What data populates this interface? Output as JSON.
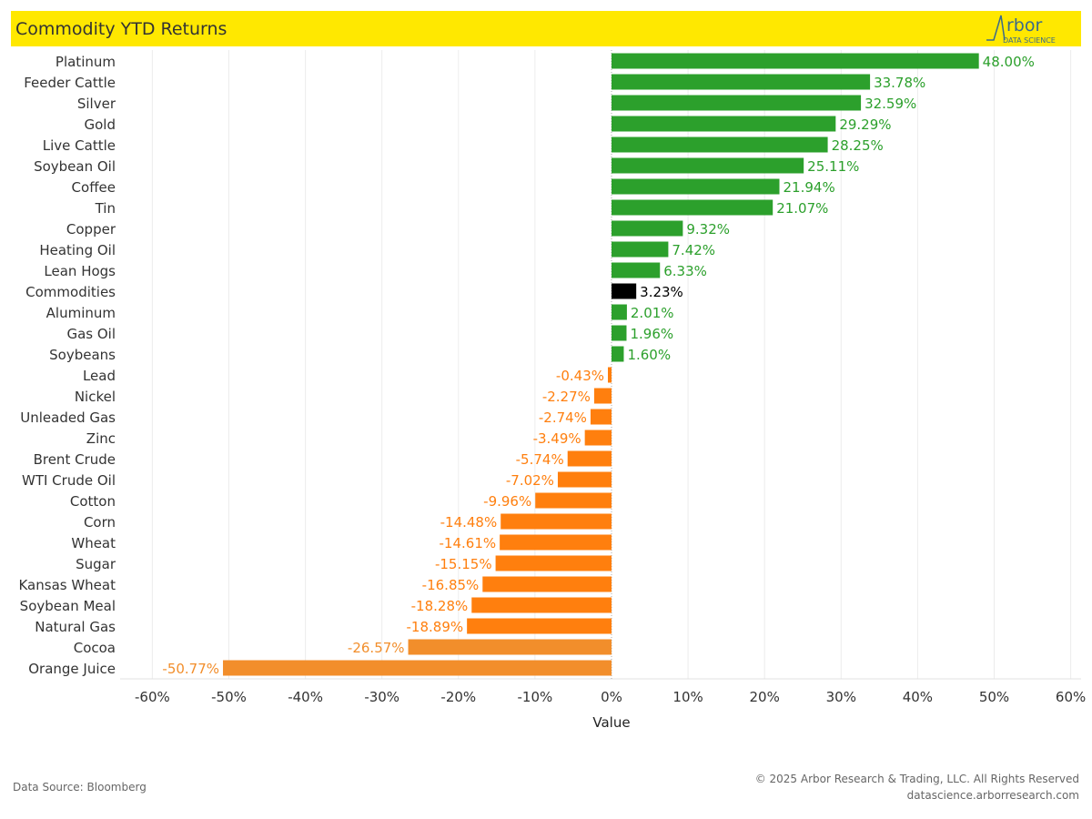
{
  "header": {
    "title": "Commodity YTD Returns",
    "logo_text": "Arbor",
    "logo_subtext": "DATA SCIENCE"
  },
  "footer": {
    "source": "Data Source: Bloomberg",
    "copyright": "© 2025 Arbor Research & Trading, LLC. All Rights Reserved",
    "website": "datascience.arborresearch.com"
  },
  "colors": {
    "positive": "#2ca02c",
    "negative": "#ff7f0e",
    "negative_deep": "#f28e2b",
    "highlight": "#000000",
    "title_bar": "#ffe800"
  },
  "chart_data": {
    "type": "bar",
    "orientation": "horizontal",
    "title": "Commodity YTD Returns",
    "xlabel": "Value",
    "xlim": [
      -60,
      60
    ],
    "xticks": [
      "-60%",
      "-50%",
      "-40%",
      "-30%",
      "-20%",
      "-10%",
      "0%",
      "10%",
      "20%",
      "30%",
      "40%",
      "50%",
      "60%"
    ],
    "grid": true,
    "highlight": "Commodities",
    "categories": [
      "Platinum",
      "Feeder Cattle",
      "Silver",
      "Gold",
      "Live Cattle",
      "Soybean Oil",
      "Coffee",
      "Tin",
      "Copper",
      "Heating Oil",
      "Lean Hogs",
      "Commodities",
      "Aluminum",
      "Gas Oil",
      "Soybeans",
      "Lead",
      "Nickel",
      "Unleaded Gas",
      "Zinc",
      "Brent Crude",
      "WTI Crude Oil",
      "Cotton",
      "Corn",
      "Wheat",
      "Sugar",
      "Kansas Wheat",
      "Soybean Meal",
      "Natural Gas",
      "Cocoa",
      "Orange Juice"
    ],
    "values": [
      48.0,
      33.78,
      32.59,
      29.29,
      28.25,
      25.11,
      21.94,
      21.07,
      9.32,
      7.42,
      6.33,
      3.23,
      2.01,
      1.96,
      1.6,
      -0.43,
      -2.27,
      -2.74,
      -3.49,
      -5.74,
      -7.02,
      -9.96,
      -14.48,
      -14.61,
      -15.15,
      -16.85,
      -18.28,
      -18.89,
      -26.57,
      -50.77
    ],
    "labels": [
      "48.00%",
      "33.78%",
      "32.59%",
      "29.29%",
      "28.25%",
      "25.11%",
      "21.94%",
      "21.07%",
      "9.32%",
      "7.42%",
      "6.33%",
      "3.23%",
      "2.01%",
      "1.96%",
      "1.60%",
      "-0.43%",
      "-2.27%",
      "-2.74%",
      "-3.49%",
      "-5.74%",
      "-7.02%",
      "-9.96%",
      "-14.48%",
      "-14.61%",
      "-15.15%",
      "-16.85%",
      "-18.28%",
      "-18.89%",
      "-26.57%",
      "-50.77%"
    ]
  }
}
